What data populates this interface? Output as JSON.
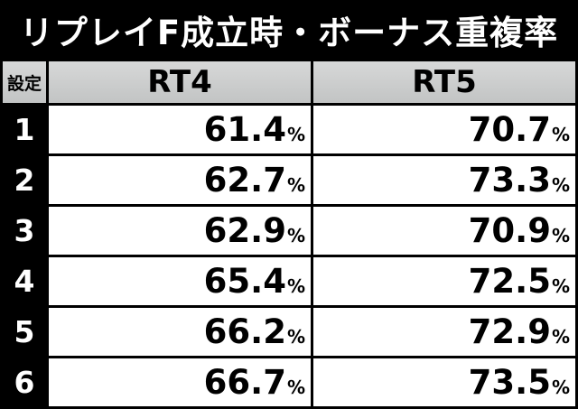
{
  "title": "リプレイF成立時・ボーナス重複率",
  "headers": {
    "setting": "設定",
    "rt4": "RT4",
    "rt5": "RT5"
  },
  "percent_sign": "%",
  "rows": [
    {
      "setting": "1",
      "rt4": "61.4",
      "rt5": "70.7"
    },
    {
      "setting": "2",
      "rt4": "62.7",
      "rt5": "73.3"
    },
    {
      "setting": "3",
      "rt4": "62.9",
      "rt5": "70.9"
    },
    {
      "setting": "4",
      "rt4": "65.4",
      "rt5": "72.5"
    },
    {
      "setting": "5",
      "rt4": "66.2",
      "rt5": "72.9"
    },
    {
      "setting": "6",
      "rt4": "66.7",
      "rt5": "73.5"
    }
  ]
}
